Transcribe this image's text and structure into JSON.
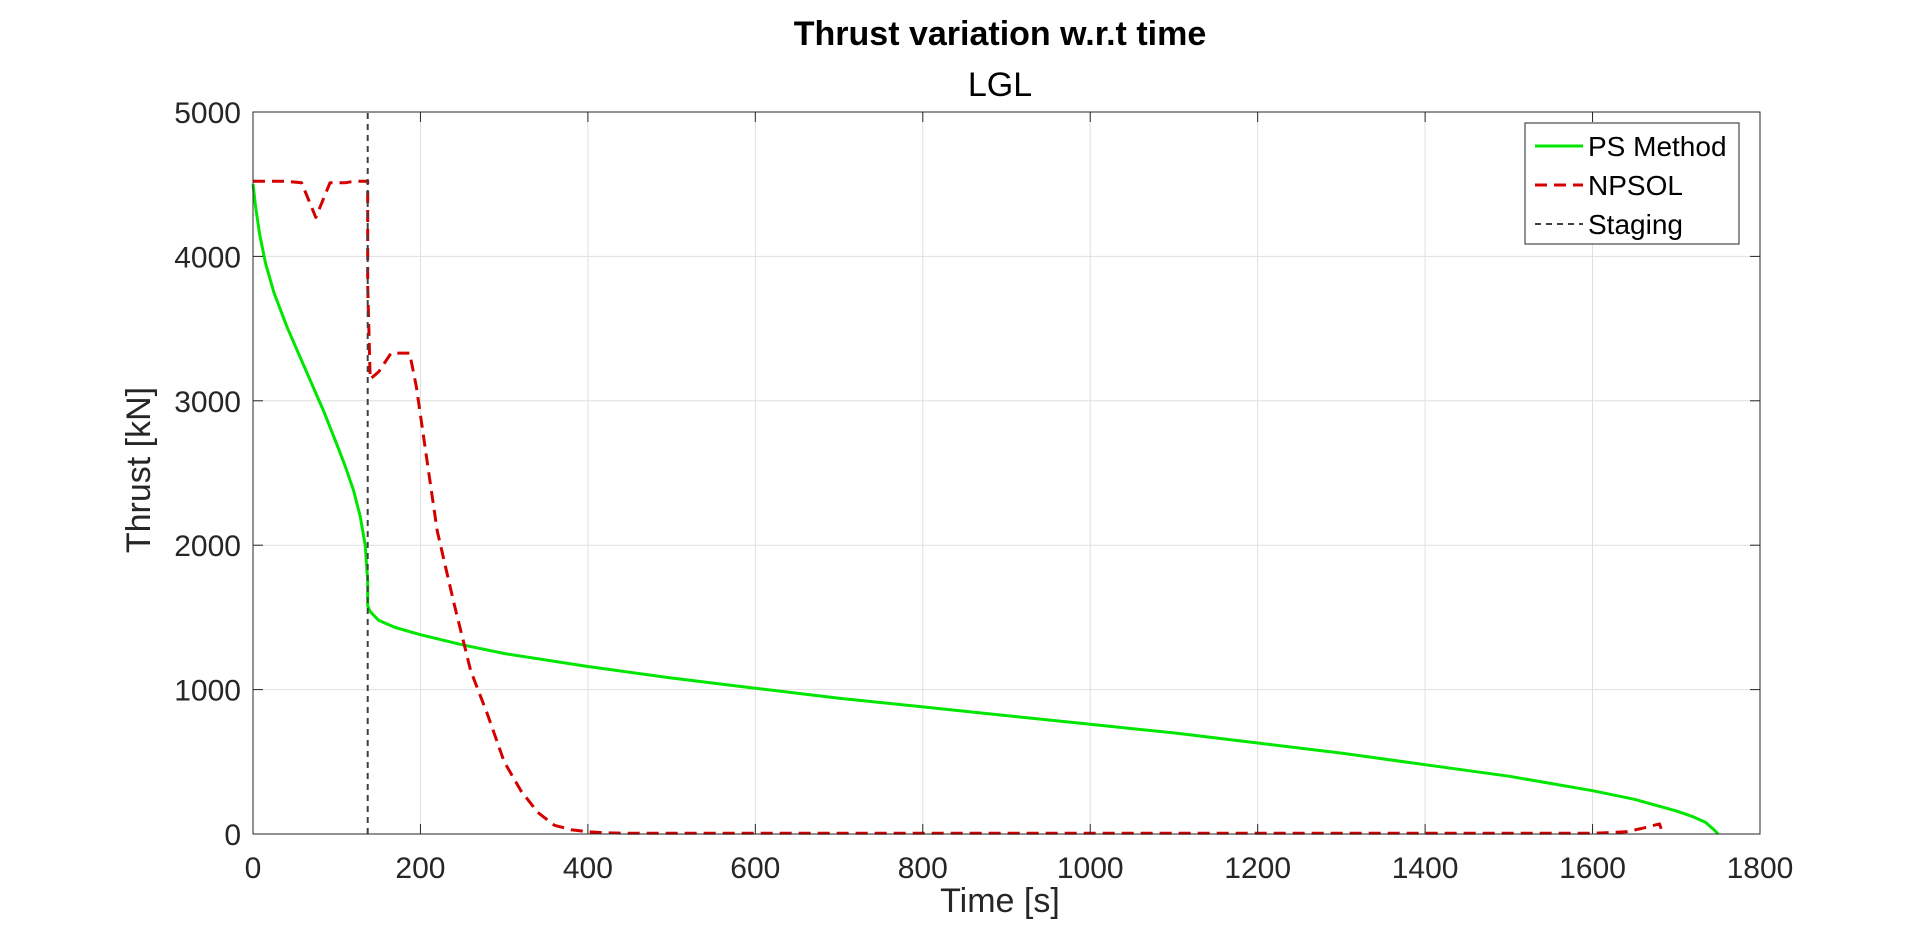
{
  "chart_data": {
    "type": "line",
    "title": "Thrust variation w.r.t time",
    "subtitle": "LGL",
    "xlabel": "Time [s]",
    "ylabel": "Thrust [kN]",
    "xlim": [
      0,
      1800
    ],
    "ylim": [
      0,
      5000
    ],
    "xticks": [
      0,
      200,
      400,
      600,
      800,
      1000,
      1200,
      1400,
      1600,
      1800
    ],
    "yticks": [
      0,
      1000,
      2000,
      3000,
      4000,
      5000
    ],
    "grid": true,
    "legend_position": "top-right",
    "colors": {
      "ps": "#00e600",
      "npsol": "#d40000",
      "staging": "#404040"
    },
    "series": [
      {
        "name": "PS Method",
        "style": "solid",
        "x": [
          0,
          3,
          8,
          15,
          25,
          40,
          55,
          70,
          85,
          100,
          110,
          120,
          128,
          134,
          137,
          137,
          140,
          150,
          170,
          200,
          250,
          300,
          400,
          500,
          600,
          700,
          800,
          900,
          1000,
          1100,
          1200,
          1300,
          1400,
          1500,
          1600,
          1650,
          1700,
          1720,
          1735,
          1745,
          1750
        ],
        "y": [
          4500,
          4350,
          4150,
          3950,
          3750,
          3520,
          3320,
          3120,
          2920,
          2700,
          2550,
          2380,
          2200,
          2000,
          1750,
          1580,
          1540,
          1480,
          1430,
          1380,
          1310,
          1250,
          1160,
          1080,
          1010,
          940,
          880,
          820,
          760,
          700,
          630,
          560,
          480,
          400,
          300,
          240,
          160,
          120,
          80,
          30,
          0
        ]
      },
      {
        "name": "NPSOL",
        "style": "dashed",
        "x": [
          0,
          40,
          58,
          75,
          92,
          110,
          120,
          137,
          137,
          140,
          150,
          165,
          175,
          187,
          195,
          210,
          220,
          240,
          260,
          280,
          300,
          320,
          340,
          360,
          380,
          400,
          420,
          450,
          500,
          600,
          800,
          1000,
          1200,
          1400,
          1600,
          1640,
          1660,
          1680,
          1683
        ],
        "y": [
          4520,
          4520,
          4510,
          4270,
          4510,
          4510,
          4520,
          4520,
          3800,
          3150,
          3200,
          3330,
          3330,
          3330,
          3100,
          2500,
          2100,
          1600,
          1130,
          830,
          500,
          300,
          150,
          60,
          30,
          15,
          8,
          5,
          5,
          5,
          5,
          5,
          5,
          5,
          5,
          15,
          40,
          70,
          20
        ]
      },
      {
        "name": "Staging",
        "style": "dotted-dashed",
        "x": [
          137,
          137
        ],
        "y": [
          0,
          5000
        ]
      }
    ]
  }
}
